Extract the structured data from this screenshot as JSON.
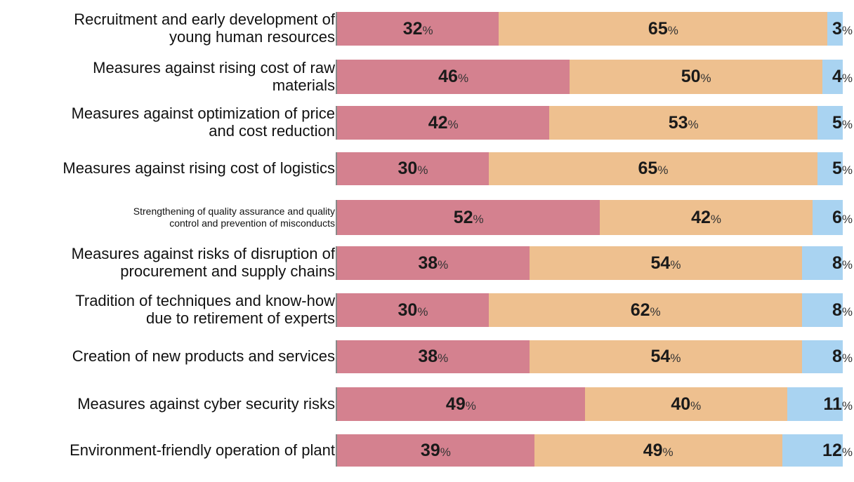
{
  "chart_data": {
    "type": "bar",
    "orientation": "horizontal",
    "stacked": true,
    "percent_suffix": "%",
    "colors": [
      "#d4818f",
      "#eec08f",
      "#a9d3f1"
    ],
    "categories": [
      "Recruitment and early development of\nyoung human resources",
      "Measures against rising cost of raw\nmaterials",
      "Measures against optimization of price\nand cost reduction",
      "Measures against rising cost of logistics",
      "Strengthening of quality assurance and quality\ncontrol and prevention of misconducts",
      "Measures against risks of disruption of\nprocurement and supply chains",
      "Tradition of techniques and know-how\ndue to retirement of experts",
      "Creation of new products and services",
      "Measures against cyber security risks",
      "Environment-friendly operation of plant"
    ],
    "series": [
      {
        "values": [
          32,
          46,
          42,
          30,
          52,
          38,
          30,
          38,
          49,
          39
        ]
      },
      {
        "values": [
          65,
          50,
          53,
          65,
          42,
          54,
          62,
          54,
          40,
          49
        ]
      },
      {
        "values": [
          3,
          4,
          5,
          5,
          6,
          8,
          8,
          8,
          11,
          12
        ]
      }
    ],
    "xlim": [
      0,
      100
    ],
    "legend": "none",
    "grid": false
  }
}
